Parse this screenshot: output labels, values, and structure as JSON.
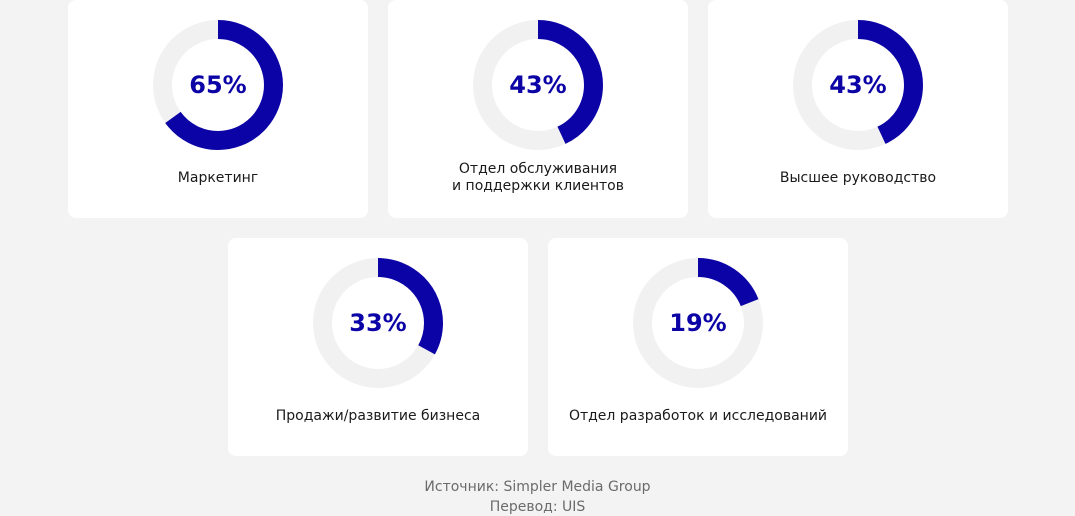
{
  "colors": {
    "accent": "#0b03a6",
    "track": "#f1f1f1",
    "card_bg": "#ffffff",
    "page_bg": "#f3f3f3"
  },
  "chart_data": {
    "type": "pie",
    "categories": [
      "Маркетинг",
      "Отдел обслуживания и поддержки клиентов",
      "Высшее руководство",
      "Продажи/развитие бизнеса",
      "Отдел разработок и исследований"
    ],
    "values": [
      65,
      43,
      43,
      33,
      19
    ],
    "unit": "%"
  },
  "cards": [
    {
      "value_text": "65%",
      "label_lines": [
        "Маркетинг"
      ]
    },
    {
      "value_text": "43%",
      "label_lines": [
        "Отдел обслуживания",
        "и поддержки клиентов"
      ]
    },
    {
      "value_text": "43%",
      "label_lines": [
        "Высшее руководство"
      ]
    },
    {
      "value_text": "33%",
      "label_lines": [
        "Продажи/развитие бизнеса"
      ]
    },
    {
      "value_text": "19%",
      "label_lines": [
        "Отдел разработок и исследований"
      ]
    }
  ],
  "footer": {
    "source": "Источник: Simpler Media Group",
    "translation": "Перевод: UIS"
  }
}
